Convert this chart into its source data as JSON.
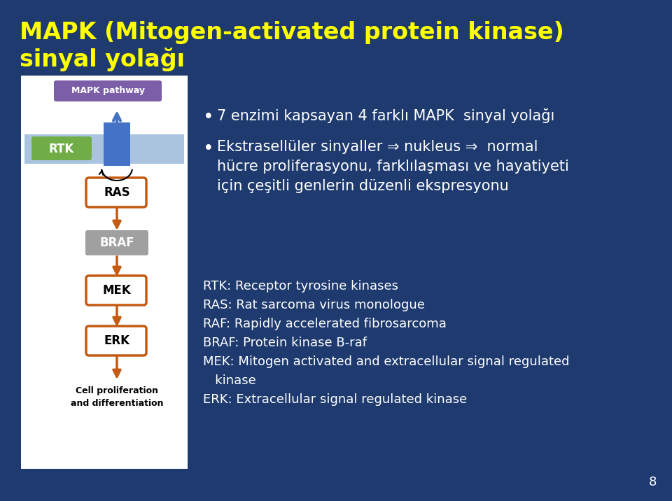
{
  "background_color": "#1e3a6e",
  "title_line1": "MAPK (Mitogen-activated protein kinase)",
  "title_line2": "sinyal yolağı",
  "title_color": "#ffff00",
  "title_fontsize": 24,
  "bullet1": "7 enzimi kapsayan 4 farklı MAPK  sinyal yolağı",
  "bullet2_line1": "Ekstrasellüler sinyaller ⇒ nukleus ⇒  normal",
  "bullet2_line2": "hücre proliferasyonu, farklılaşması ve hayatiyeti",
  "bullet2_line3": "için çeşitli genlerin düzenli ekspresyonu",
  "bullet_color": "#ffffff",
  "bullet_fontsize": 15,
  "def_rtk": "RTK: Receptor tyrosine kinases",
  "def_ras": "RAS: Rat sarcoma virus monologue",
  "def_raf": "RAF: Rapidly accelerated fibrosarcoma",
  "def_braf": "BRAF: Protein kinase B-raf",
  "def_mek": "MEK: Mitogen activated and extracellular signal regulated",
  "def_mek2": "   kinase",
  "def_erk": "ERK: Extracellular signal regulated kinase",
  "def_fontsize": 13,
  "def_color": "#ffffff",
  "diagram_bg": "#ffffff",
  "page_number": "8",
  "pathway_label_bg": "#7b5ea7",
  "pathway_label_color": "#ffffff",
  "rtk_box_color": "#70ad47",
  "rtk_text_color": "#ffffff",
  "blue_bar_color": "#aac4e0",
  "blue_square_color": "#4472c4",
  "ras_box_color": "#ffffff",
  "ras_border_color": "#c55a11",
  "braf_box_color": "#a0a0a0",
  "braf_text_color": "#ffffff",
  "mek_box_color": "#ffffff",
  "mek_border_color": "#c55a11",
  "erk_box_color": "#ffffff",
  "erk_border_color": "#c55a11",
  "arrow_color": "#c55a11"
}
